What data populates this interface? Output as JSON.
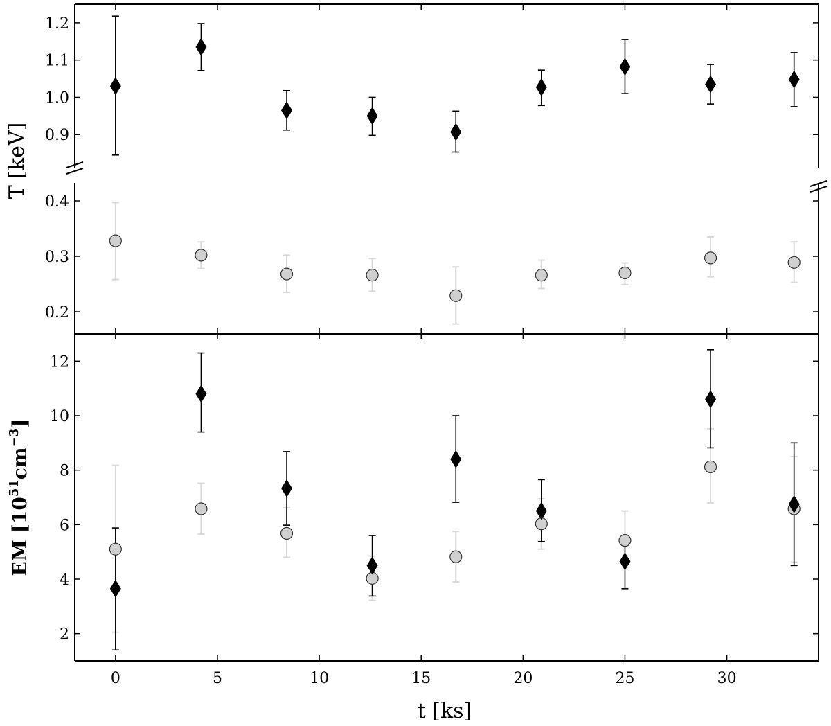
{
  "chart_data": [
    {
      "type": "scatter",
      "panel": "temperature",
      "ylabel": "T [keV]",
      "broken_axis": true,
      "ylim_upper": [
        0.8,
        1.25
      ],
      "ylim_lower": [
        0.16,
        0.44
      ],
      "yticks_upper": [
        "0.9",
        "1.0",
        "1.1",
        "1.2"
      ],
      "yticks_lower": [
        "0.2",
        "0.3",
        "0.4"
      ],
      "x": [
        0,
        4.2,
        8.4,
        12.6,
        16.7,
        20.9,
        25.0,
        29.2,
        33.3
      ],
      "series": [
        {
          "marker": "diamond",
          "color": "#000000",
          "values": [
            1.03,
            1.135,
            0.965,
            0.95,
            0.907,
            1.027,
            1.082,
            1.035,
            1.048
          ],
          "err_low": [
            0.845,
            1.072,
            0.912,
            0.898,
            0.853,
            0.978,
            1.01,
            0.982,
            0.975
          ],
          "err_high": [
            1.218,
            1.198,
            1.018,
            1.0,
            0.963,
            1.073,
            1.155,
            1.088,
            1.12
          ]
        },
        {
          "marker": "circle",
          "color": "#d0d0d0",
          "values": [
            0.328,
            0.302,
            0.268,
            0.266,
            0.229,
            0.266,
            0.27,
            0.297,
            0.289
          ],
          "err_low": [
            0.258,
            0.278,
            0.235,
            0.237,
            0.178,
            0.242,
            0.249,
            0.263,
            0.253
          ],
          "err_high": [
            0.397,
            0.326,
            0.302,
            0.296,
            0.281,
            0.293,
            0.288,
            0.335,
            0.326
          ]
        }
      ]
    },
    {
      "type": "scatter",
      "panel": "emission_measure",
      "ylabel": "EM [10",
      "ylabel_sup": "51",
      "ylabel_unit": "cm",
      "ylabel_unit_sup": "−3",
      "ylabel_end": "]",
      "xlabel": "t [ks]",
      "ylim": [
        1,
        13
      ],
      "xlim": [
        -2,
        34.5
      ],
      "xticks": [
        "0",
        "5",
        "10",
        "15",
        "20",
        "25",
        "30"
      ],
      "yticks": [
        "2",
        "4",
        "6",
        "8",
        "10",
        "12"
      ],
      "x": [
        0,
        4.2,
        8.4,
        12.6,
        16.7,
        20.9,
        25.0,
        29.2,
        33.3
      ],
      "series": [
        {
          "marker": "diamond",
          "color": "#000000",
          "values": [
            3.65,
            10.8,
            7.33,
            4.5,
            8.4,
            6.5,
            4.65,
            10.6,
            6.75
          ],
          "err_low": [
            1.4,
            9.4,
            5.98,
            3.38,
            6.82,
            5.38,
            3.65,
            8.82,
            4.5
          ],
          "err_high": [
            5.88,
            12.3,
            8.68,
            5.6,
            10.0,
            7.65,
            5.4,
            12.42,
            9.0
          ]
        },
        {
          "marker": "circle",
          "color": "#d0d0d0",
          "values": [
            5.1,
            6.58,
            5.68,
            4.03,
            4.82,
            6.03,
            5.42,
            8.12,
            6.58
          ],
          "err_low": [
            2.05,
            5.65,
            4.8,
            3.22,
            3.9,
            5.1,
            4.72,
            6.8,
            4.62
          ],
          "err_high": [
            8.18,
            7.52,
            6.62,
            4.85,
            5.75,
            6.95,
            6.5,
            9.52,
            8.5
          ]
        }
      ]
    }
  ]
}
